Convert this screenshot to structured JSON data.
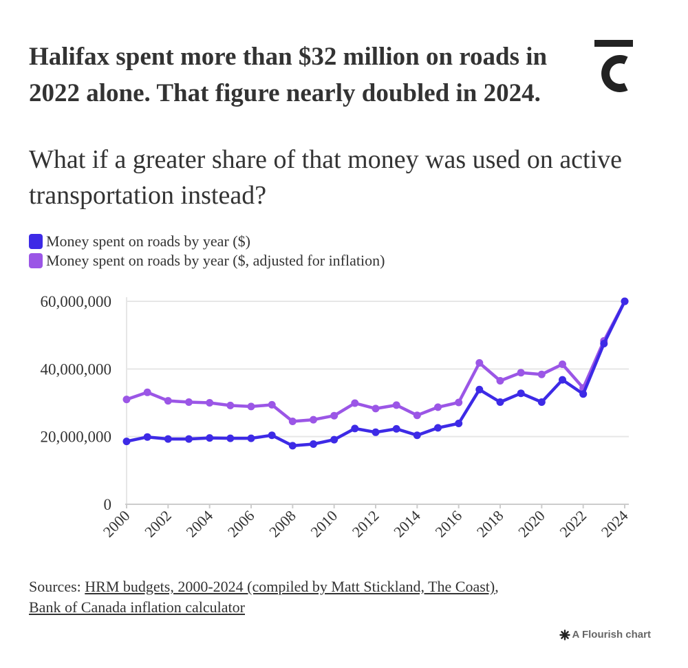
{
  "header": {
    "title": "Halifax spent more than $32 million on roads in 2022 alone. That figure nearly doubled in 2024.",
    "subtitle": "What if a greater share of that money was used on active transportation instead?"
  },
  "footer": {
    "sources_prefix": "Sources: ",
    "source_link_1": "HRM budgets, 2000-2024 (compiled by Matt Stickland, The Coast)",
    "source_separator": ",",
    "source_link_2": "Bank of Canada inflation calculator",
    "credit_text": "A Flourish chart"
  },
  "chart_data": {
    "type": "line",
    "title": "Halifax spent more than $32 million on roads in 2022 alone. That figure nearly doubled in 2024.",
    "subtitle": "What if a greater share of that money was used on active transportation instead?",
    "xlabel": "",
    "ylabel": "",
    "x": [
      2000,
      2001,
      2002,
      2003,
      2004,
      2005,
      2006,
      2007,
      2008,
      2009,
      2010,
      2011,
      2012,
      2013,
      2014,
      2015,
      2016,
      2017,
      2018,
      2019,
      2020,
      2021,
      2022,
      2023,
      2024
    ],
    "x_ticks": [
      "2000",
      "2002",
      "2004",
      "2006",
      "2008",
      "2010",
      "2012",
      "2014",
      "2016",
      "2018",
      "2020",
      "2022",
      "2024"
    ],
    "ylim": [
      0,
      60000000
    ],
    "y_ticks": [
      "0",
      "20,000,000",
      "40,000,000",
      "60,000,000"
    ],
    "grid": true,
    "legend_position": "top-left",
    "series": [
      {
        "name": "Money spent on roads by year ($)",
        "color": "#3d2ae6",
        "values": [
          18600000,
          19900000,
          19300000,
          19300000,
          19600000,
          19500000,
          19500000,
          20400000,
          17300000,
          17800000,
          19100000,
          22400000,
          21300000,
          22300000,
          20400000,
          22600000,
          23900000,
          33900000,
          30200000,
          32800000,
          30200000,
          36800000,
          32600000,
          47500000,
          60000000
        ]
      },
      {
        "name": "Money spent on roads by year ($, adjusted for inflation)",
        "color": "#9b56e6",
        "values": [
          31000000,
          33100000,
          30600000,
          30200000,
          30000000,
          29200000,
          28900000,
          29400000,
          24500000,
          25000000,
          26200000,
          29900000,
          28300000,
          29300000,
          26300000,
          28700000,
          30100000,
          41800000,
          36500000,
          38900000,
          38400000,
          41400000,
          34400000,
          48300000,
          60000000
        ]
      }
    ]
  }
}
